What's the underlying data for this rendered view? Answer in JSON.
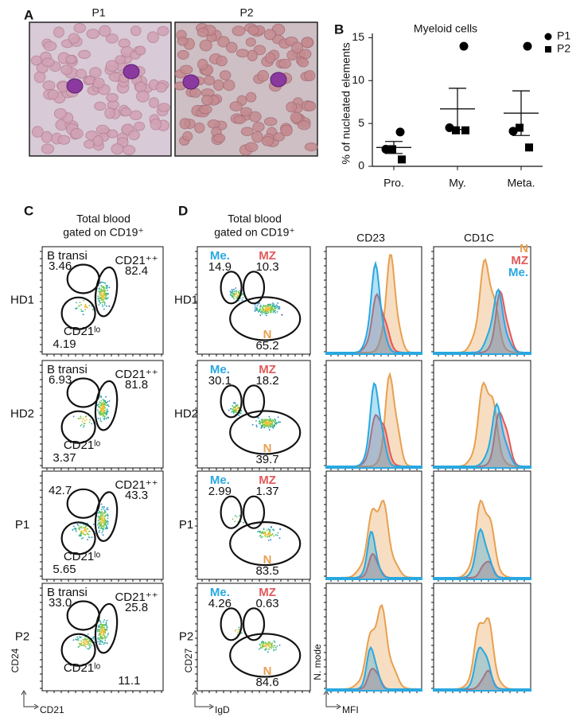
{
  "panel_labels": {
    "a": "A",
    "b": "B",
    "c": "C",
    "d": "D"
  },
  "panel_a": {
    "titles": [
      "P1",
      "P2"
    ]
  },
  "chart_data": {
    "type": "scatter",
    "title": "Myeloid cells",
    "y_label": "% of nucleated elements",
    "categories": [
      "Pro.",
      "My.",
      "Meta."
    ],
    "ylim": [
      0,
      15.5
    ],
    "yticks": [
      0,
      5,
      10,
      15
    ],
    "series": [
      {
        "name": "P1",
        "marker": "circle",
        "color": "#000000",
        "values": [
          [
            4,
            2
          ],
          [
            14,
            4.5
          ],
          [
            14,
            4.1
          ]
        ]
      },
      {
        "name": "P2",
        "marker": "square",
        "color": "#000000",
        "values": [
          [
            2,
            0.8
          ],
          [
            4.2,
            4.2
          ],
          [
            4.5,
            2.2
          ]
        ]
      }
    ],
    "summary": {
      "mean": [
        2.2,
        6.7,
        6.2
      ],
      "sem": [
        0.7,
        2.4,
        2.6
      ]
    },
    "legend": "upper right"
  },
  "panel_c": {
    "header": [
      "Total blood",
      "gated on CD19⁺"
    ],
    "y_axis": "CD24",
    "x_axis": "CD21",
    "rows": [
      {
        "sample": "HD1",
        "transi": {
          "label": "B transi",
          "value": "3.46"
        },
        "hi": {
          "label": "CD21⁺⁺",
          "value": "82.4"
        },
        "lo": {
          "label": "CD21ˡᵒ",
          "value": "4.19"
        }
      },
      {
        "sample": "HD2",
        "transi": {
          "label": "B transi",
          "value": "6.93"
        },
        "hi": {
          "label": "CD21⁺⁺",
          "value": "81.8"
        },
        "lo": {
          "label": "CD21ˡᵒ",
          "value": "3.37"
        }
      },
      {
        "sample": "P1",
        "transi": {
          "value": "42.7"
        },
        "hi": {
          "label": "CD21⁺⁺",
          "value": "43.3"
        },
        "lo": {
          "label": "CD21ˡᵒ",
          "value": "5.65"
        }
      },
      {
        "sample": "P2",
        "transi": {
          "label": "B transi",
          "value": "33.0"
        },
        "hi": {
          "label": "CD21⁺⁺",
          "value": "25.8"
        },
        "lo": {
          "label": "CD21ˡᵒ",
          "value": "11.1"
        }
      }
    ]
  },
  "panel_d": {
    "header": [
      "Total blood",
      "gated on CD19⁺"
    ],
    "y_axis": "CD27",
    "x_axis": "IgD",
    "rows": [
      {
        "sample": "HD1",
        "me": {
          "label": "Me.",
          "value": "14.9"
        },
        "mz": {
          "label": "MZ",
          "value": "10.3"
        },
        "n": {
          "label": "N",
          "value": "65.2"
        }
      },
      {
        "sample": "HD2",
        "me": {
          "label": "Me.",
          "value": "30.1"
        },
        "mz": {
          "label": "MZ",
          "value": "18.2"
        },
        "n": {
          "label": "N",
          "value": "39.7"
        }
      },
      {
        "sample": "P1",
        "me": {
          "label": "Me.",
          "value": "2.99"
        },
        "mz": {
          "label": "MZ",
          "value": "1.37"
        },
        "n": {
          "label": "N",
          "value": "83.5"
        }
      },
      {
        "sample": "P2",
        "me": {
          "label": "Me.",
          "value": "4.26"
        },
        "mz": {
          "label": "MZ",
          "value": "0.63"
        },
        "n": {
          "label": "N",
          "value": "84.6"
        }
      }
    ],
    "histograms": {
      "headers": [
        "CD23",
        "CD1C"
      ],
      "legend": [
        {
          "name": "N",
          "color": "#e8a050"
        },
        {
          "name": "MZ",
          "color": "#e05a5a"
        },
        {
          "name": "Me.",
          "color": "#29a8e0"
        }
      ],
      "y_axis": "N. mode",
      "x_axis": "MFI"
    }
  }
}
